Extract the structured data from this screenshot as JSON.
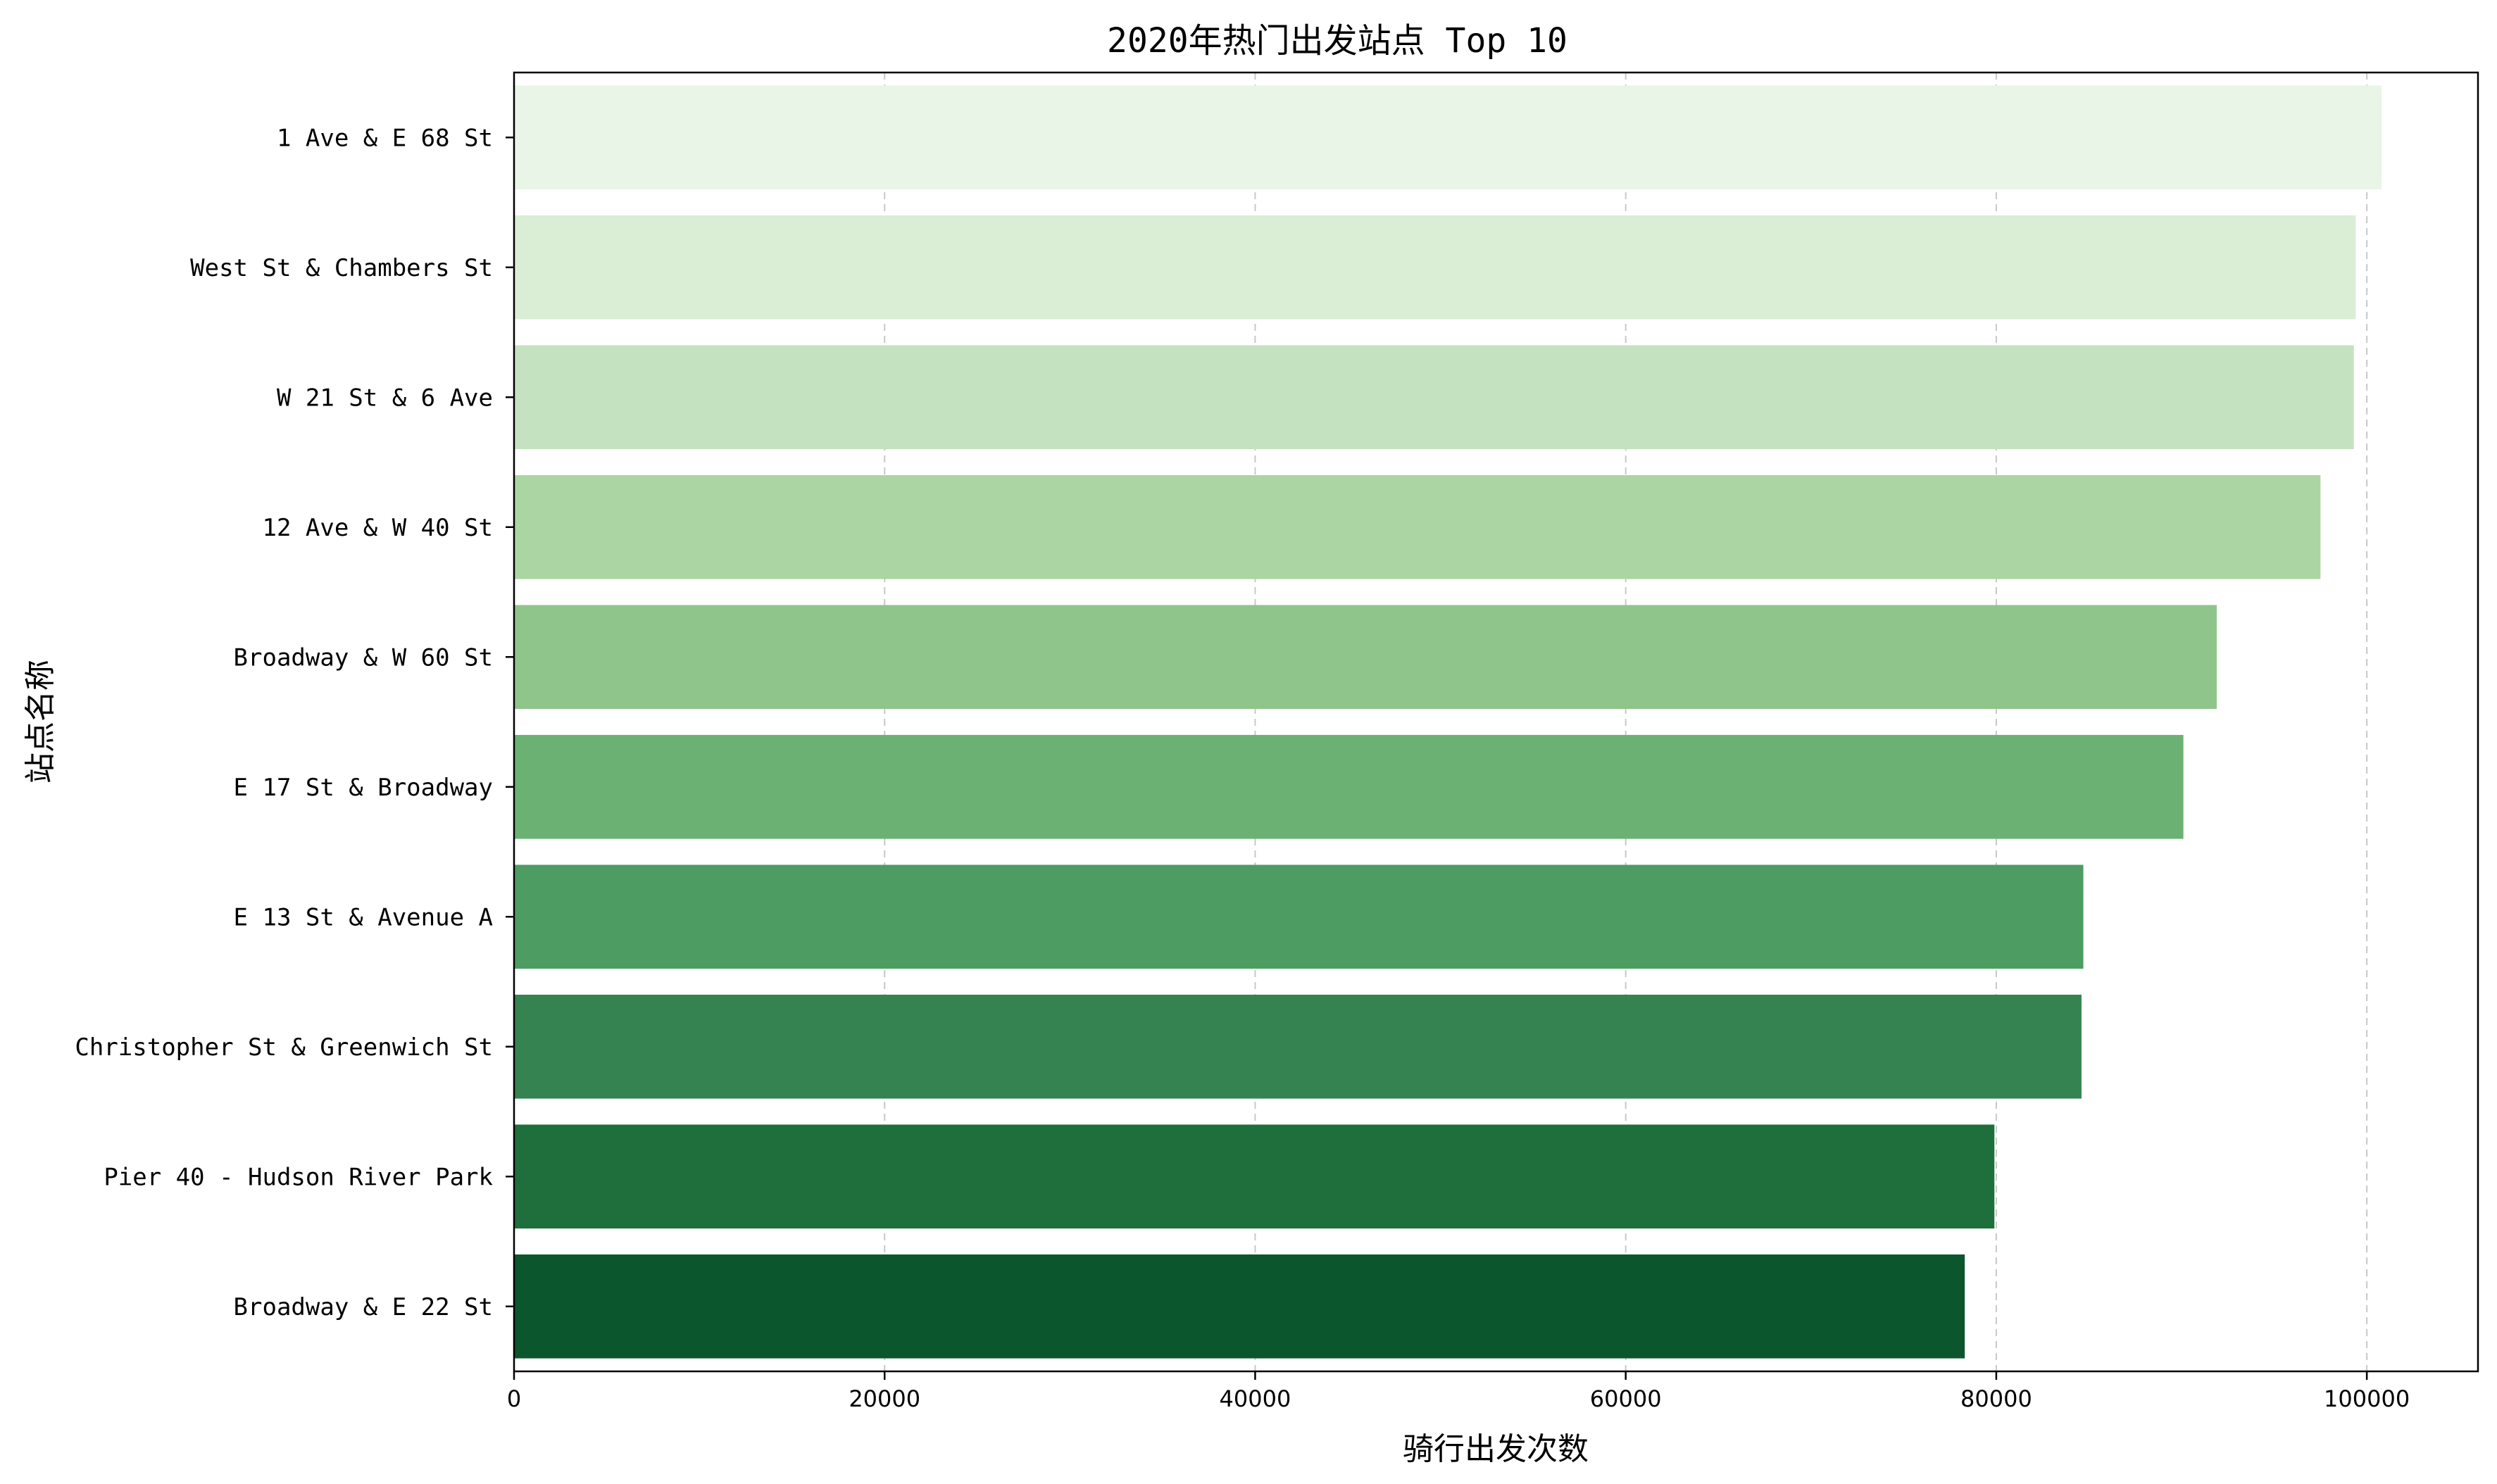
{
  "chart_data": {
    "type": "bar",
    "orientation": "horizontal",
    "title": "2020年热门出发站点 Top 10",
    "xlabel": "骑行出发次数",
    "ylabel": "站点名称",
    "xlim": [
      0,
      106000
    ],
    "xticks": [
      0,
      20000,
      40000,
      60000,
      80000,
      100000
    ],
    "grid": "x-dashed",
    "categories": [
      "1 Ave & E 68 St",
      "West St & Chambers St",
      "W 21 St & 6 Ave",
      "12 Ave & W 40 St",
      "Broadway & W 60 St",
      "E 17 St & Broadway",
      "E 13 St & Avenue A",
      "Christopher St & Greenwich St",
      "Pier 40 - Hudson River Park",
      "Broadway & E 22 St"
    ],
    "values": [
      100800,
      99400,
      99300,
      97500,
      91900,
      90100,
      84700,
      84600,
      79900,
      78300
    ],
    "colors": [
      "#e9f5e6",
      "#d9eed5",
      "#c5e2c0",
      "#abd5a3",
      "#8fc48b",
      "#6bb174",
      "#4d9c62",
      "#358350",
      "#1e6f3c",
      "#0c562e"
    ]
  }
}
